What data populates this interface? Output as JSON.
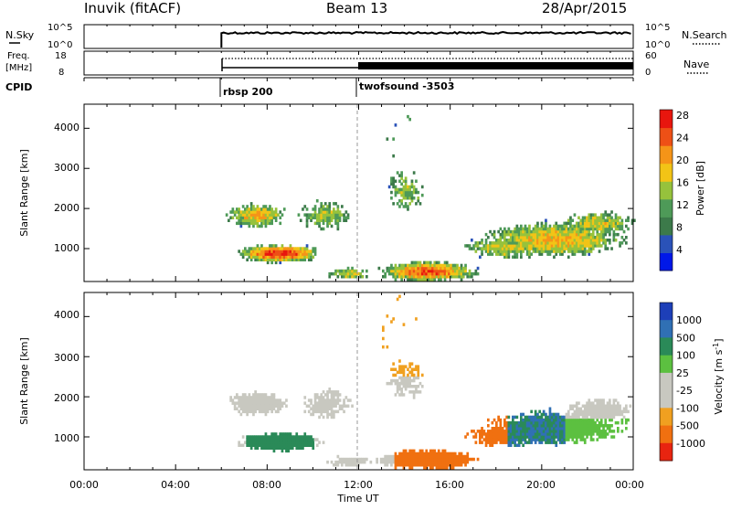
{
  "header": {
    "station": "Inuvik (fitACF)",
    "beam": "Beam 13",
    "date": "28/Apr/2015"
  },
  "nsky_panel": {
    "left_label": "N.Sky",
    "right_label": "N.Search",
    "left_ticks": [
      "10^5",
      "10^0"
    ],
    "right_ticks": [
      "10^5",
      "10^0"
    ]
  },
  "freq_panel": {
    "left_label_line1": "Freq.",
    "left_label_line2": "[MHz]",
    "right_label": "Nave",
    "left_ticks": [
      "18",
      "8"
    ],
    "right_ticks": [
      "60",
      "0"
    ]
  },
  "cpid": {
    "label": "CPID",
    "modes": [
      {
        "name": "rbsp 200",
        "start_hour": 6
      },
      {
        "name": "twofsound -3503",
        "start_hour": 12
      }
    ]
  },
  "chart_data": [
    {
      "type": "heatmap",
      "quantity": "Power",
      "ylabel": "Slant Range [km]",
      "ylim": [
        180,
        4600
      ],
      "yticks": [
        "1000",
        "2000",
        "3000",
        "4000"
      ],
      "xlim_hours": [
        0,
        24
      ],
      "colorbar_label": "Power [dB]",
      "colorbar_ticks": [
        "4",
        "8",
        "12",
        "16",
        "20",
        "24",
        "28"
      ],
      "colorbar_colors": [
        "#0018e8",
        "#2a52b8",
        "#3c7a4a",
        "#4e9a58",
        "#96c23c",
        "#f2c416",
        "#f59418",
        "#ee5016",
        "#e8160e"
      ]
    },
    {
      "type": "heatmap",
      "quantity": "Velocity",
      "ylabel": "Slant Range [km]",
      "ylim": [
        180,
        4600
      ],
      "yticks": [
        "1000",
        "2000",
        "3000",
        "4000"
      ],
      "xlim_hours": [
        0,
        24
      ],
      "xlabel": "Time UT",
      "xticks": [
        "00:00",
        "04:00",
        "08:00",
        "12:00",
        "16:00",
        "20:00",
        "00:00"
      ],
      "colorbar_label": "Velocity [m s",
      "colorbar_label_exp": "-1",
      "colorbar_label_close": "]",
      "colorbar_ticks": [
        "1000",
        "500",
        "100",
        "25",
        "-25",
        "-100",
        "-500",
        "-1000"
      ],
      "colorbar_colors": [
        "#1d3fb8",
        "#3070b4",
        "#2a8a58",
        "#5cc040",
        "#c8c8c0",
        "#c8c8c0",
        "#f0a020",
        "#f07010",
        "#e82410"
      ]
    }
  ]
}
